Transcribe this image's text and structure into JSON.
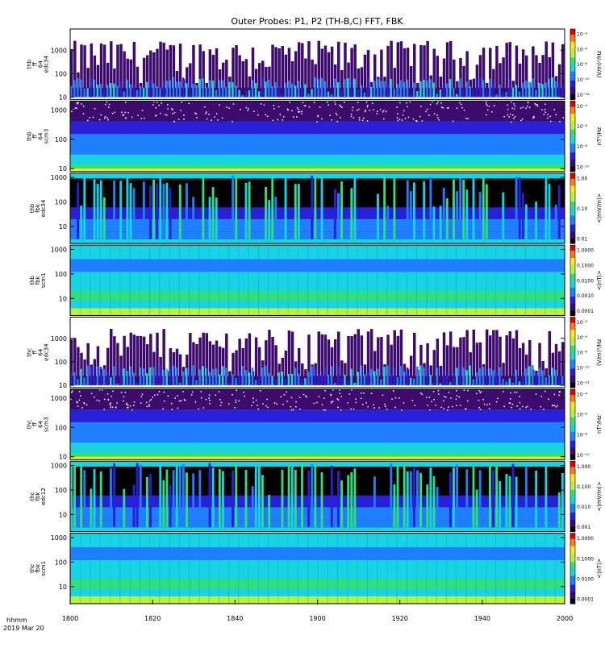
{
  "chart_data": {
    "type": "heatmap",
    "title": "Outer Probes: P1, P2 (TH-B,C) FFT, FBK",
    "time_axis": {
      "ticks": [
        "1800",
        "1820",
        "1840",
        "1900",
        "1920",
        "1940",
        "2000"
      ],
      "label_line1": "hhmm",
      "label_line2": "2019 Mar 20"
    },
    "panels": [
      {
        "id": "thb-ff-e34",
        "label": [
          "thb",
          "ff",
          "64",
          "edc34"
        ],
        "kind": "fft_e",
        "y_ticks": [
          "1000",
          "100",
          "10"
        ],
        "y_range": [
          8,
          8000
        ],
        "colorbar": {
          "unit": "(V/m)²/Hz",
          "ticks": [
            "10⁻⁴",
            "10⁻⁶",
            "10⁻⁸",
            "10⁻¹⁰",
            "10⁻¹²"
          ]
        }
      },
      {
        "id": "thb-ff-scm3",
        "label": [
          "thb",
          "ff",
          "64",
          "scm3"
        ],
        "kind": "fft_b",
        "y_ticks": [
          "1000",
          "100",
          "10"
        ],
        "y_range": [
          8,
          2000
        ],
        "colorbar": {
          "unit": "nT²/Hz",
          "ticks": [
            "10⁻⁴",
            "10⁻⁶",
            "10⁻⁸",
            "10⁻¹⁰"
          ]
        }
      },
      {
        "id": "thb-fbk-edc34",
        "label": [
          "thb",
          "fbk",
          "edc34"
        ],
        "kind": "fbk_e",
        "y_ticks": [
          "1000",
          "100",
          "10"
        ],
        "y_range": [
          2,
          1500
        ],
        "colorbar": {
          "unit": "<|mV/m|>",
          "ticks": [
            "1.00",
            "0.10",
            "0.01"
          ]
        }
      },
      {
        "id": "thb-fbk-scm1",
        "label": [
          "thb",
          "fbk",
          "scm1"
        ],
        "kind": "fbk_b",
        "y_ticks": [
          "1000",
          "100",
          "10"
        ],
        "y_range": [
          2,
          1500
        ],
        "colorbar": {
          "unit": "<|nT|>",
          "ticks": [
            "1.0000",
            "0.1000",
            "0.0100",
            "0.0010",
            "0.0001"
          ]
        }
      },
      {
        "id": "thc-ff-e34",
        "label": [
          "thc",
          "ff",
          "64",
          "edc34"
        ],
        "kind": "fft_e",
        "y_ticks": [
          "1000",
          "100",
          "10"
        ],
        "y_range": [
          8,
          8000
        ],
        "colorbar": {
          "unit": "(V/m)²/Hz",
          "ticks": [
            "10⁻⁴",
            "10⁻⁶",
            "10⁻⁸",
            "10⁻¹⁰",
            "10⁻¹²"
          ]
        }
      },
      {
        "id": "thc-ff-scm3",
        "label": [
          "thc",
          "ff",
          "64",
          "scm3"
        ],
        "kind": "fft_b",
        "y_ticks": [
          "1000",
          "100",
          "10"
        ],
        "y_range": [
          8,
          2000
        ],
        "colorbar": {
          "unit": "nT²/Hz",
          "ticks": [
            "10⁻⁴",
            "10⁻⁶",
            "10⁻⁸",
            "10⁻¹⁰"
          ]
        }
      },
      {
        "id": "thc-fbk-edc12",
        "label": [
          "thc",
          "fbk",
          "edc12"
        ],
        "kind": "fbk_e",
        "y_ticks": [
          "1000",
          "100",
          "10"
        ],
        "y_range": [
          2,
          1500
        ],
        "colorbar": {
          "unit": "<|mV/m|>",
          "ticks": [
            "1.000",
            "0.100",
            "0.010",
            "0.001"
          ]
        }
      },
      {
        "id": "thc-fbk-scm1",
        "label": [
          "thc",
          "fbk",
          "scm1"
        ],
        "kind": "fbk_b",
        "y_ticks": [
          "1000",
          "100",
          "10"
        ],
        "y_range": [
          2,
          1500
        ],
        "colorbar": {
          "unit": "<|nT|>",
          "ticks": [
            "1.0000",
            "0.1000",
            "0.0100",
            "0.0001"
          ]
        }
      }
    ],
    "colormap": [
      "#000000",
      "#3d0a6e",
      "#2a1fd9",
      "#1f7fff",
      "#18d4e0",
      "#2fe07a",
      "#b8f03a",
      "#ffe81a",
      "#ff7a10",
      "#e00000"
    ]
  }
}
